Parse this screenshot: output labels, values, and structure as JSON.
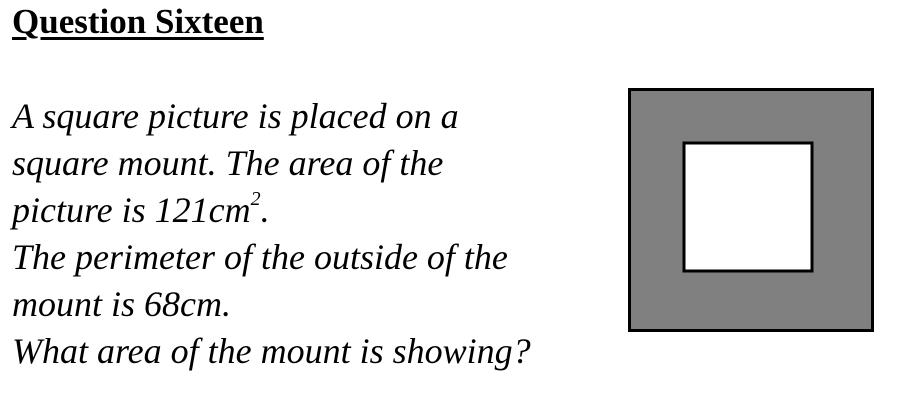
{
  "title": "Question Sixteen",
  "question": {
    "line1": "A square picture is placed on a",
    "line2": "square mount. The area of the",
    "line3_prefix": "picture is 121cm",
    "line3_sup": "2",
    "line3_suffix": ".",
    "line4": "The perimeter of the outside of the",
    "line5": "mount is 68cm.",
    "line6": "What area of the mount is showing?"
  },
  "figure": {
    "mount_color": "#808080",
    "picture_color": "#ffffff",
    "border_color": "#000000"
  }
}
